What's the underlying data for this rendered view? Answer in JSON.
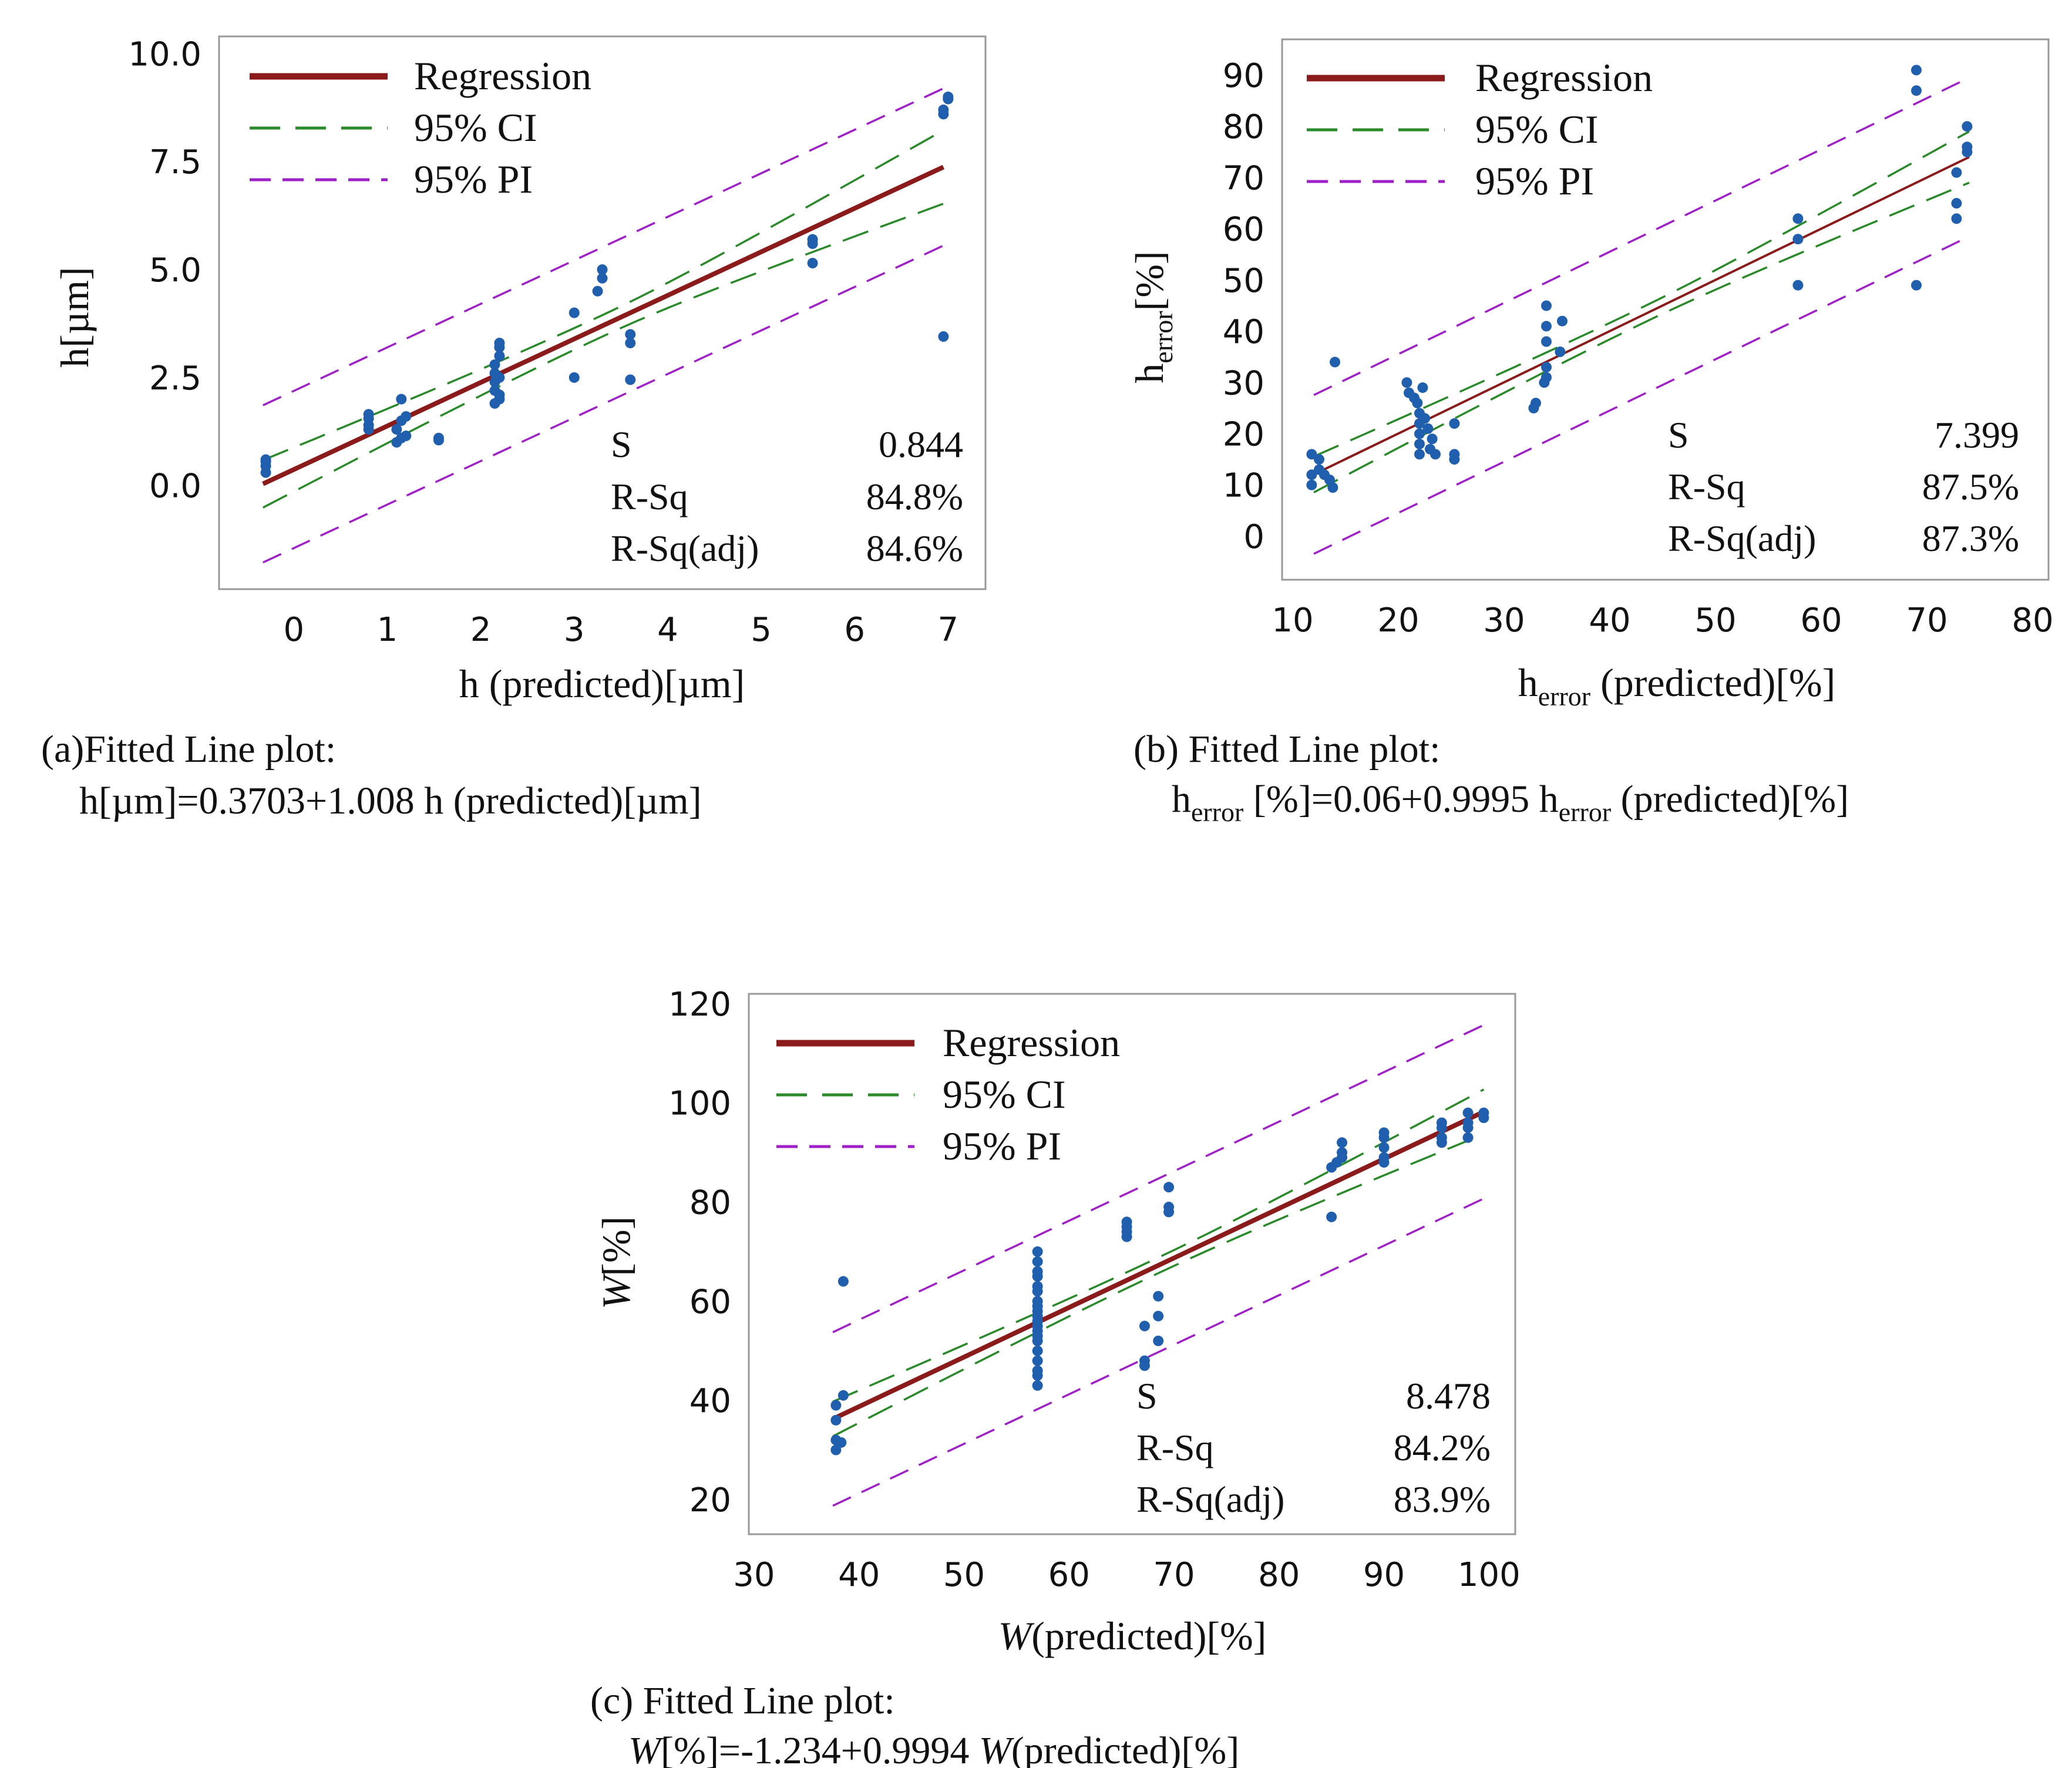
{
  "chart_data": [
    {
      "id": "a",
      "type": "scatter",
      "xlabel": "h (predicted)[µm]",
      "ylabel": "h[µm]",
      "xlim": [
        -0.8,
        7.4
      ],
      "ylim": [
        -2.4,
        10.4
      ],
      "xticks": [
        "0",
        "1",
        "2",
        "3",
        "4",
        "5",
        "6",
        "7"
      ],
      "xtick_values": [
        0,
        1,
        2,
        3,
        4,
        5,
        6,
        7
      ],
      "yticks": [
        "0.0",
        "2.5",
        "5.0",
        "7.5",
        "10.0"
      ],
      "ytick_values": [
        0,
        2.5,
        5,
        7.5,
        10
      ],
      "legend": [
        "Regression",
        "95% CI",
        "95% PI"
      ],
      "stats": {
        "labels": [
          "S",
          "R-Sq",
          "R-Sq(adj)"
        ],
        "values": [
          "0.844",
          "84.8%",
          "84.6%"
        ]
      },
      "caption_line1": "(a)Fitted Line plot:",
      "caption_line2": "h[µm]=0.3703+1.008 h (predicted)[µm]",
      "regression": {
        "x0": -0.33,
        "x1": 6.95,
        "intercept": 0.3703,
        "slope": 1.008
      },
      "ci": {
        "x0": -0.33,
        "x1": 6.95,
        "half0": 0.55,
        "half1": 0.85
      },
      "pi": {
        "x0": -0.33,
        "x1": 6.95,
        "half": 1.82
      },
      "points": [
        [
          -0.3,
          0.45
        ],
        [
          -0.3,
          0.6
        ],
        [
          -0.3,
          0.3
        ],
        [
          -0.3,
          0.55
        ],
        [
          0.8,
          1.4
        ],
        [
          0.8,
          1.65
        ],
        [
          0.8,
          1.55
        ],
        [
          0.8,
          1.3
        ],
        [
          1.1,
          1.0
        ],
        [
          1.1,
          1.3
        ],
        [
          1.15,
          1.1
        ],
        [
          1.15,
          1.5
        ],
        [
          1.15,
          2.0
        ],
        [
          1.2,
          1.6
        ],
        [
          1.2,
          1.15
        ],
        [
          1.55,
          1.05
        ],
        [
          1.55,
          1.1
        ],
        [
          2.15,
          1.9
        ],
        [
          2.15,
          2.2
        ],
        [
          2.15,
          2.4
        ],
        [
          2.15,
          2.6
        ],
        [
          2.15,
          2.8
        ],
        [
          2.2,
          3.0
        ],
        [
          2.2,
          3.2
        ],
        [
          2.2,
          3.3
        ],
        [
          2.2,
          2.1
        ],
        [
          2.2,
          2.5
        ],
        [
          2.2,
          2.0
        ],
        [
          3.0,
          4.0
        ],
        [
          3.0,
          2.5
        ],
        [
          3.25,
          4.5
        ],
        [
          3.3,
          4.8
        ],
        [
          3.3,
          5.0
        ],
        [
          3.6,
          3.3
        ],
        [
          3.6,
          3.5
        ],
        [
          3.6,
          2.45
        ],
        [
          5.55,
          5.6
        ],
        [
          5.55,
          5.7
        ],
        [
          5.55,
          5.15
        ],
        [
          6.95,
          8.6
        ],
        [
          6.95,
          8.7
        ],
        [
          7.0,
          9.0
        ],
        [
          7.0,
          8.95
        ],
        [
          6.95,
          3.45
        ]
      ]
    },
    {
      "id": "b",
      "type": "scatter",
      "xlabel_main": "h",
      "xlabel_sub": "error",
      "xlabel_rest": " (predicted)[%]",
      "ylabel_main": "h",
      "ylabel_sub": "error",
      "ylabel_rest": "[%]",
      "xlim": [
        9,
        81.5
      ],
      "ylim": [
        -8.5,
        97
      ],
      "xticks": [
        "10",
        "20",
        "30",
        "40",
        "50",
        "60",
        "70",
        "80"
      ],
      "xtick_values": [
        10,
        20,
        30,
        40,
        50,
        60,
        70,
        80
      ],
      "yticks": [
        "0",
        "10",
        "20",
        "30",
        "40",
        "50",
        "60",
        "70",
        "80",
        "90"
      ],
      "ytick_values": [
        0,
        10,
        20,
        30,
        40,
        50,
        60,
        70,
        80,
        90
      ],
      "legend": [
        "Regression",
        "95% CI",
        "95% PI"
      ],
      "stats": {
        "labels": [
          "S",
          "R-Sq",
          "R-Sq(adj)"
        ],
        "values": [
          "7.399",
          "87.5%",
          "87.3%"
        ]
      },
      "caption_line1": "(b) Fitted Line plot:",
      "caption_line2_parts": [
        "h",
        "error",
        " [%]=0.06+0.9995 h",
        "error",
        " (predicted)[%]"
      ],
      "regression": {
        "x0": 12,
        "x1": 74,
        "intercept": 0.06,
        "slope": 0.9995
      },
      "ci": {
        "x0": 12,
        "x1": 74,
        "half0": 3.5,
        "half1": 5
      },
      "pi": {
        "x0": 12,
        "x1": 74,
        "half": 15.5
      },
      "points": [
        [
          11.8,
          10
        ],
        [
          11.8,
          12
        ],
        [
          11.8,
          16
        ],
        [
          12.5,
          15
        ],
        [
          12.5,
          13
        ],
        [
          13,
          12
        ],
        [
          13.5,
          11
        ],
        [
          13.8,
          9.5
        ],
        [
          14,
          34
        ],
        [
          20.8,
          30
        ],
        [
          21,
          28
        ],
        [
          21.5,
          27
        ],
        [
          21.8,
          26
        ],
        [
          22,
          24
        ],
        [
          22,
          22
        ],
        [
          22,
          20
        ],
        [
          22,
          18
        ],
        [
          22,
          16
        ],
        [
          22.3,
          29
        ],
        [
          22.5,
          23
        ],
        [
          22.8,
          21
        ],
        [
          23,
          17
        ],
        [
          23.2,
          19
        ],
        [
          23.5,
          16
        ],
        [
          25.3,
          22
        ],
        [
          25.3,
          16
        ],
        [
          25.3,
          15
        ],
        [
          32.8,
          25
        ],
        [
          33,
          26
        ],
        [
          33.8,
          30
        ],
        [
          34,
          31
        ],
        [
          34,
          33
        ],
        [
          34,
          38
        ],
        [
          34,
          41
        ],
        [
          34,
          45
        ],
        [
          35.3,
          36
        ],
        [
          35.5,
          42
        ],
        [
          57.8,
          62
        ],
        [
          57.8,
          58
        ],
        [
          57.8,
          49
        ],
        [
          69,
          91
        ],
        [
          69,
          87
        ],
        [
          69,
          49
        ],
        [
          72.8,
          71
        ],
        [
          72.8,
          65
        ],
        [
          72.8,
          62
        ],
        [
          73.8,
          80
        ],
        [
          73.8,
          76
        ],
        [
          73.8,
          75
        ]
      ]
    },
    {
      "id": "c",
      "type": "scatter",
      "xlabel_var": "W",
      "xlabel_rest": "(predicted)[%]",
      "ylabel_var": "W",
      "ylabel_rest": "[%]",
      "xlim": [
        29.5,
        102.5
      ],
      "ylim": [
        13,
        122
      ],
      "xticks": [
        "30",
        "40",
        "50",
        "60",
        "70",
        "80",
        "90",
        "100"
      ],
      "xtick_values": [
        30,
        40,
        50,
        60,
        70,
        80,
        90,
        100
      ],
      "yticks": [
        "20",
        "40",
        "60",
        "80",
        "100",
        "120"
      ],
      "ytick_values": [
        20,
        40,
        60,
        80,
        100,
        120
      ],
      "legend": [
        "Regression",
        "95% CI",
        "95% PI"
      ],
      "stats": {
        "labels": [
          "S",
          "R-Sq",
          "R-Sq(adj)"
        ],
        "values": [
          "8.478",
          "84.2%",
          "83.9%"
        ]
      },
      "caption_line1": "(c) Fitted Line plot:",
      "caption_line2_parts": [
        "W",
        "[%]=-1.234+0.9994 ",
        "W",
        "(predicted)[%]"
      ],
      "regression": {
        "x0": 37.5,
        "x1": 99.5,
        "intercept": -1.234,
        "slope": 0.9994
      },
      "ci": {
        "x0": 37.5,
        "x1": 99.5,
        "half0": 3.5,
        "half1": 4.5
      },
      "pi": {
        "x0": 37.5,
        "x1": 99.5,
        "half": 17.5
      },
      "points": [
        [
          37.8,
          39
        ],
        [
          37.8,
          36
        ],
        [
          37.8,
          32
        ],
        [
          37.8,
          30
        ],
        [
          38.3,
          31.5
        ],
        [
          38.5,
          41
        ],
        [
          38.5,
          64
        ],
        [
          57,
          70
        ],
        [
          57,
          68
        ],
        [
          57,
          66
        ],
        [
          57,
          65
        ],
        [
          57,
          63
        ],
        [
          57,
          62
        ],
        [
          57,
          60
        ],
        [
          57,
          59
        ],
        [
          57,
          58
        ],
        [
          57,
          57
        ],
        [
          57,
          56
        ],
        [
          57,
          55
        ],
        [
          57,
          54
        ],
        [
          57,
          53
        ],
        [
          57,
          52
        ],
        [
          57,
          50
        ],
        [
          57,
          48
        ],
        [
          57,
          46
        ],
        [
          57,
          45
        ],
        [
          57,
          43
        ],
        [
          65.5,
          76
        ],
        [
          65.5,
          75
        ],
        [
          65.5,
          74
        ],
        [
          65.5,
          73
        ],
        [
          67.2,
          55
        ],
        [
          67.2,
          48
        ],
        [
          67.2,
          47
        ],
        [
          68.5,
          61
        ],
        [
          68.5,
          57
        ],
        [
          68.5,
          52
        ],
        [
          69.5,
          83
        ],
        [
          69.5,
          79
        ],
        [
          69.5,
          78
        ],
        [
          85,
          87
        ],
        [
          85,
          77
        ],
        [
          85.5,
          88
        ],
        [
          86,
          92
        ],
        [
          86,
          90
        ],
        [
          86,
          89
        ],
        [
          90,
          94
        ],
        [
          90,
          93
        ],
        [
          90,
          91
        ],
        [
          90,
          89
        ],
        [
          90,
          88
        ],
        [
          95.5,
          96
        ],
        [
          95.5,
          95
        ],
        [
          95.5,
          93
        ],
        [
          95.5,
          92
        ],
        [
          98,
          98
        ],
        [
          98,
          96
        ],
        [
          98,
          95
        ],
        [
          98,
          93
        ],
        [
          99.5,
          98
        ],
        [
          99.5,
          97
        ]
      ]
    }
  ],
  "colors": {
    "regression": "#8b1a1a",
    "ci": "#2a8a2a",
    "pi": "#a020c8",
    "point": "#1f5fae",
    "frame": "#999999"
  }
}
